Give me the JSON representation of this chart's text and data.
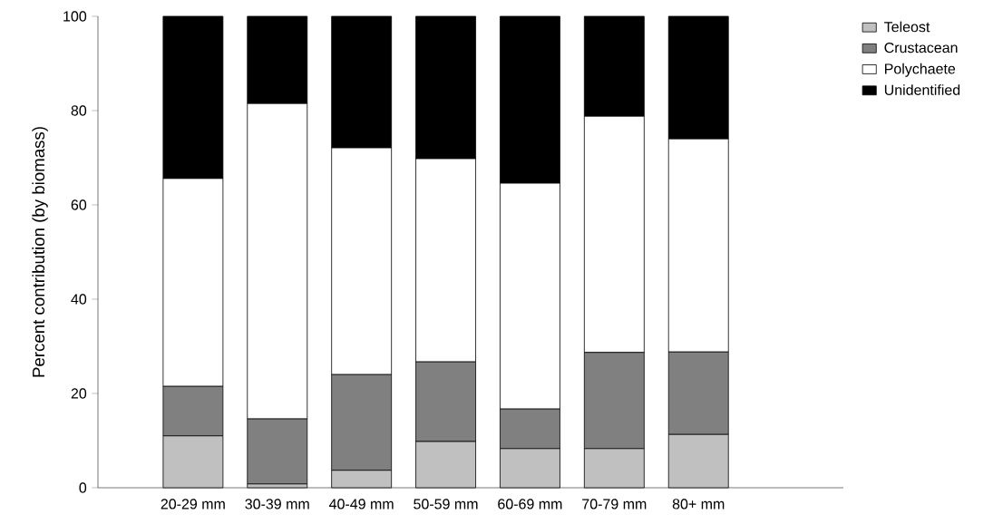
{
  "chart_data": {
    "type": "bar",
    "stacked": true,
    "ylabel": "Percent contribution (by biomass)",
    "categories": [
      "20-29 mm",
      "30-39 mm",
      "40-49 mm",
      "50-59 mm",
      "60-69 mm",
      "70-79 mm",
      "80+ mm"
    ],
    "series": [
      {
        "name": "Teleost",
        "color": "#c0c0c0",
        "values": [
          11,
          0.8,
          3.7,
          9.8,
          8.3,
          8.3,
          11.3
        ]
      },
      {
        "name": "Crustacean",
        "color": "#808080",
        "values": [
          10.5,
          13.8,
          20.3,
          16.9,
          8.4,
          20.4,
          17.5
        ]
      },
      {
        "name": "Polychaete",
        "color": "#ffffff",
        "values": [
          44.1,
          66.9,
          48.1,
          43.1,
          47.9,
          50.1,
          45.2
        ]
      },
      {
        "name": "Unidentified",
        "color": "#000000",
        "values": [
          34.4,
          18.5,
          27.9,
          30.2,
          35.4,
          21.2,
          26.0
        ]
      }
    ],
    "ylim": [
      0,
      100
    ],
    "yticks": [
      0,
      20,
      40,
      60,
      80,
      100
    ],
    "grid": false,
    "legend": "top right"
  }
}
